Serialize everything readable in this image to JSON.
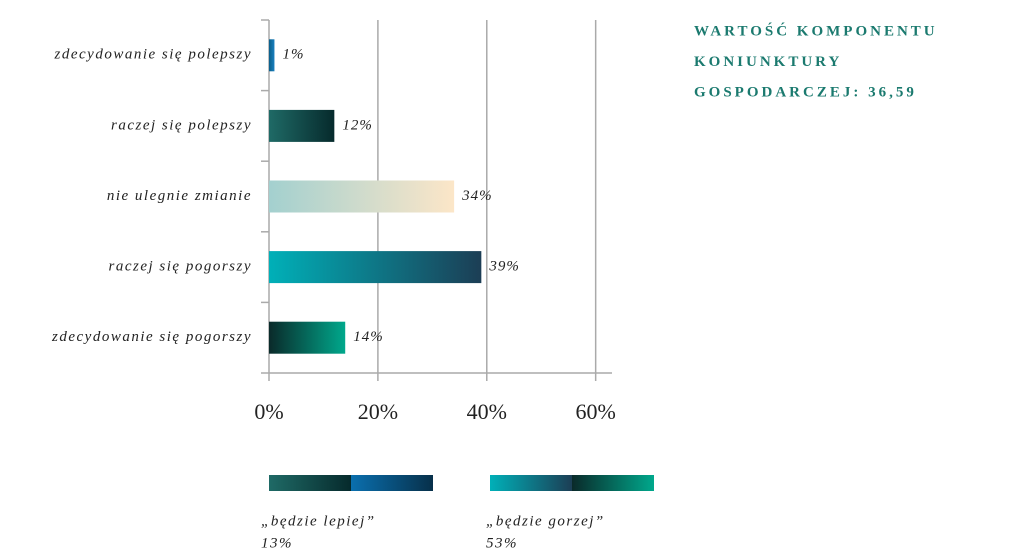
{
  "chart_data": {
    "type": "bar",
    "orientation": "horizontal",
    "categories": [
      "zdecydowanie się polepszy",
      "raczej się polepszy",
      "nie ulegnie zmianie",
      "raczej się pogorszy",
      "zdecydowanie się pogorszy"
    ],
    "values": [
      1,
      12,
      34,
      39,
      14
    ],
    "value_labels": [
      "1%",
      "12%",
      "34%",
      "39%",
      "14%"
    ],
    "colors": [
      [
        "#0a5f8a",
        "#1a7fbf"
      ],
      [
        "#1f6a66",
        "#062a2c"
      ],
      [
        "#a3d0cf",
        "#fce6c8"
      ],
      [
        "#00b0b8",
        "#1c3e55"
      ],
      [
        "#0a2a2a",
        "#00a88c"
      ]
    ],
    "xlim": [
      0,
      63
    ],
    "xticks": [
      {
        "value": 0,
        "label": "0%"
      },
      {
        "value": 20,
        "label": "20%"
      },
      {
        "value": 40,
        "label": "40%"
      },
      {
        "value": 60,
        "label": "60%"
      }
    ],
    "grid": true,
    "annotation": [
      "WARTOŚĆ KOMPONENTU",
      "KONIUNKTURY",
      "GOSPODARCZEJ: 36,59"
    ],
    "legend": [
      {
        "name": "„będzie lepiej”",
        "share": "13%",
        "colors": [
          "#1f6a66",
          "#062a2c",
          "#0a6fae",
          "#07304a"
        ]
      },
      {
        "name": "„będzie gorzej”",
        "share": "53%",
        "colors": [
          "#00b0b8",
          "#1c3e55",
          "#0a2a2a",
          "#00a88c"
        ]
      }
    ]
  }
}
